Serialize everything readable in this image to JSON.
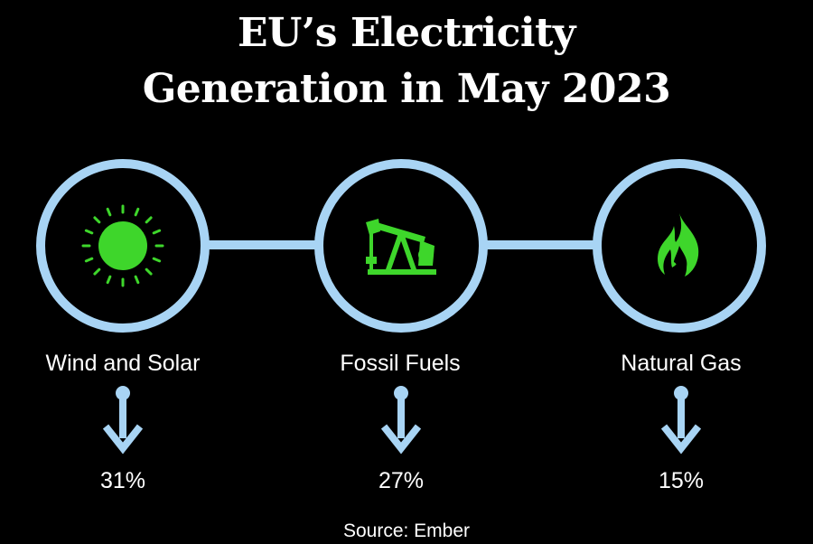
{
  "title": {
    "line1": "EU’s Electricity",
    "line2": "Generation in May 2023"
  },
  "colors": {
    "background": "#000000",
    "ring": "#a8d4f4",
    "icon_green": "#3ed62b",
    "text": "#ffffff"
  },
  "items": [
    {
      "label": "Wind and Solar",
      "value": "31%",
      "icon": "sun-icon",
      "trend": "down-arrow-icon"
    },
    {
      "label": "Fossil Fuels",
      "value": "27%",
      "icon": "oil-pump-icon",
      "trend": "down-arrow-icon"
    },
    {
      "label": "Natural Gas",
      "value": "15%",
      "icon": "flame-icon",
      "trend": "down-arrow-icon"
    }
  ],
  "source": "Source: Ember"
}
